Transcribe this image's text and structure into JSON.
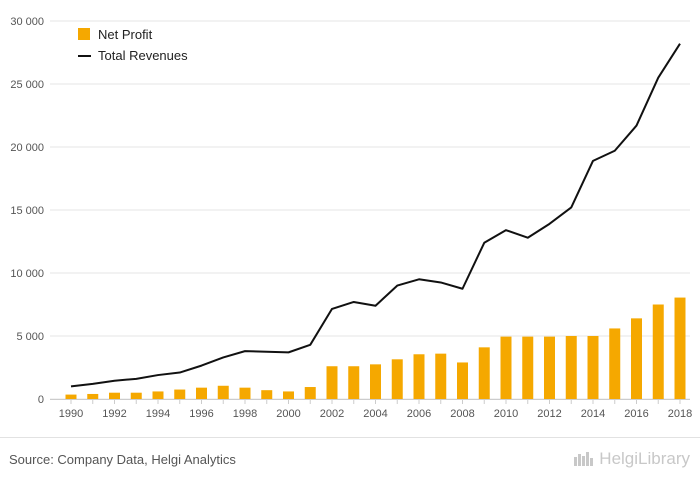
{
  "colors": {
    "net_profit": "#f5a800",
    "total_revenues": "#111111",
    "grid": "#e6e6e6",
    "axis_text": "#555555"
  },
  "legend": {
    "net_profit_label": "Net Profit",
    "total_revenues_label": "Total Revenues"
  },
  "footer": {
    "source": "Source: Company Data, Helgi Analytics",
    "brand": "HelgiLibrary"
  },
  "chart_data": {
    "type": "bar+line",
    "title": "",
    "xlabel": "",
    "ylabel": "",
    "ylim": [
      0,
      30000
    ],
    "yticks": [
      0,
      5000,
      10000,
      15000,
      20000,
      25000,
      30000
    ],
    "ytick_labels": [
      "0",
      "5 000",
      "10 000",
      "15 000",
      "20 000",
      "25 000",
      "30 000"
    ],
    "xtick_labels": [
      "1990",
      "1992",
      "1994",
      "1996",
      "1998",
      "2000",
      "2002",
      "2004",
      "2006",
      "2008",
      "2010",
      "2012",
      "2014",
      "2016",
      "2018"
    ],
    "grid": true,
    "legend_position": "top-left",
    "x": [
      1990,
      1991,
      1992,
      1993,
      1994,
      1995,
      1996,
      1997,
      1998,
      1999,
      2000,
      2001,
      2002,
      2003,
      2004,
      2005,
      2006,
      2007,
      2008,
      2009,
      2010,
      2011,
      2012,
      2013,
      2014,
      2015,
      2016,
      2017,
      2018
    ],
    "series": [
      {
        "name": "Net Profit",
        "type": "bar",
        "values": [
          350,
          400,
          500,
          500,
          600,
          750,
          900,
          1050,
          900,
          700,
          600,
          950,
          2600,
          2600,
          2750,
          3150,
          3550,
          3600,
          2900,
          4100,
          4950,
          4950,
          4950,
          5000,
          5000,
          5600,
          6400,
          7500,
          8050
        ]
      },
      {
        "name": "Total Revenues",
        "type": "line",
        "values": [
          1000,
          1200,
          1450,
          1600,
          1900,
          2100,
          2650,
          3300,
          3800,
          3750,
          3700,
          4300,
          7150,
          7700,
          7400,
          9000,
          9500,
          9250,
          8750,
          12400,
          13400,
          12800,
          13900,
          15200,
          18900,
          19700,
          21700,
          25500,
          28200
        ]
      }
    ]
  }
}
